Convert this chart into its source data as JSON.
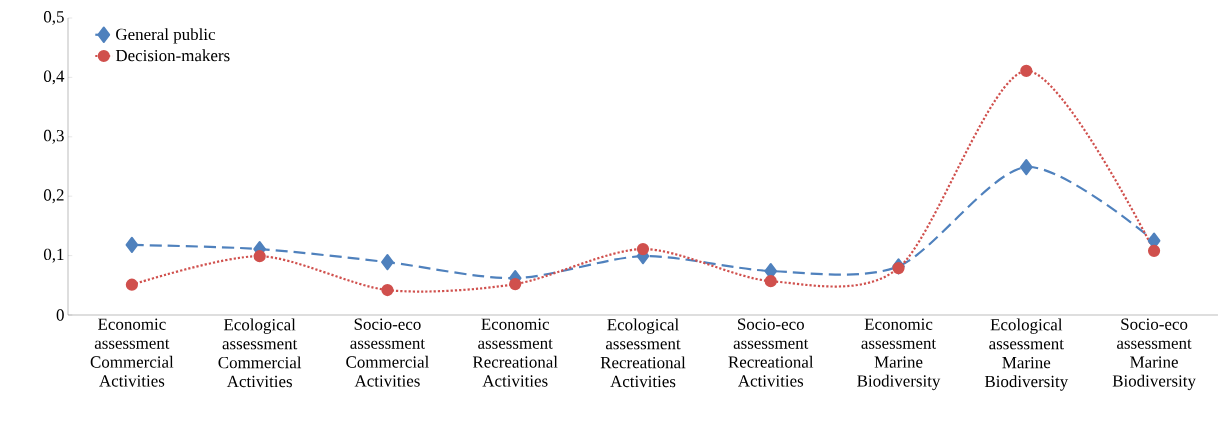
{
  "chart_data": {
    "type": "line",
    "categories": [
      "Economic assessment Commercial Activities",
      "Ecological assessment Commercial Activities",
      "Socio-eco assessment Commercial Activities",
      "Economic assessment Recreational Activities",
      "Ecological assessment Recreational Activities",
      "Socio-eco assessment Recreational Activities",
      "Economic assessment Marine Biodiversity",
      "Ecological assessment Marine Biodiversity",
      "Socio-eco assessment Marine Biodiversity"
    ],
    "series": [
      {
        "name": "General public",
        "color": "#4f81bd",
        "line_style": "dashed",
        "marker": "diamond",
        "values": [
          0.118,
          0.111,
          0.089,
          0.062,
          0.099,
          0.074,
          0.082,
          0.249,
          0.125
        ]
      },
      {
        "name": "Decision-makers",
        "color": "#d0504d",
        "line_style": "dotted",
        "marker": "circle",
        "values": [
          0.051,
          0.099,
          0.042,
          0.052,
          0.111,
          0.057,
          0.079,
          0.411,
          0.108
        ]
      }
    ],
    "ylim": [
      0,
      0.5
    ],
    "yticks": [
      {
        "value": 0,
        "label": "0"
      },
      {
        "value": 0.1,
        "label": "0,1"
      },
      {
        "value": 0.2,
        "label": "0,2"
      },
      {
        "value": 0.3,
        "label": "0,3"
      },
      {
        "value": 0.4,
        "label": "0,4"
      },
      {
        "value": 0.5,
        "label": "0,5"
      }
    ],
    "grid": false,
    "legend": "top left"
  }
}
